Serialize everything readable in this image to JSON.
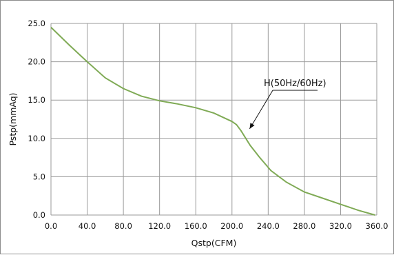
{
  "chart_data": {
    "type": "line",
    "title": "",
    "xlabel": "Qstp(CFM)",
    "ylabel": "Pstp(mmAq)",
    "xlim": [
      0,
      360
    ],
    "ylim": [
      0,
      25
    ],
    "xticks": [
      "0.0",
      "40.0",
      "80.0",
      "120.0",
      "160.0",
      "200.0",
      "240.0",
      "280.0",
      "320.0",
      "360.0"
    ],
    "yticks": [
      "0.0",
      "5.0",
      "10.0",
      "15.0",
      "20.0",
      "25.0"
    ],
    "grid": true,
    "line_color": "#7faa55",
    "series": [
      {
        "name": "H(50Hz/60Hz)",
        "x": [
          0,
          20,
          40,
          60,
          80,
          100,
          120,
          140,
          160,
          180,
          200,
          205,
          210,
          220,
          230,
          243,
          260,
          280,
          300,
          320,
          340,
          358
        ],
        "y": [
          24.5,
          22.2,
          20.0,
          17.9,
          16.5,
          15.5,
          14.9,
          14.5,
          14.0,
          13.3,
          12.2,
          11.8,
          11.0,
          9.1,
          7.6,
          5.8,
          4.3,
          3.0,
          2.2,
          1.4,
          0.6,
          0.0
        ]
      }
    ],
    "annotation": {
      "text": "H(50Hz/60Hz)",
      "arrow_target": {
        "x": 218,
        "y": 10.8
      }
    }
  }
}
